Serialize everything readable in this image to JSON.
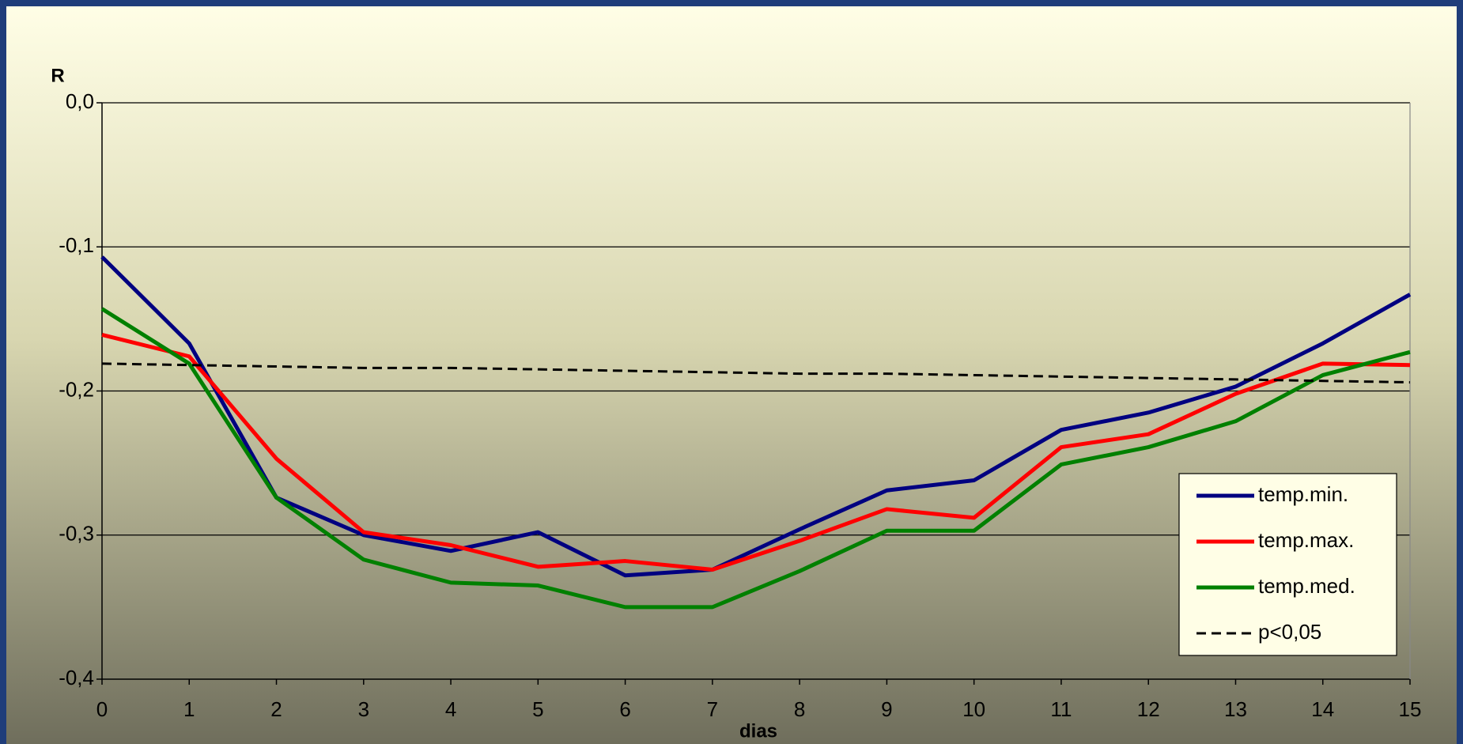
{
  "chart_data": {
    "type": "line",
    "y_label": "R",
    "x_label": "dias",
    "x": [
      0,
      1,
      2,
      3,
      4,
      5,
      6,
      7,
      8,
      9,
      10,
      11,
      12,
      13,
      14,
      15
    ],
    "xlim": [
      0,
      15
    ],
    "xticks": [
      0,
      1,
      2,
      3,
      4,
      5,
      6,
      7,
      8,
      9,
      10,
      11,
      12,
      13,
      14,
      15
    ],
    "ylim": [
      -0.4,
      0
    ],
    "yticks": [
      {
        "value": -0.4,
        "label": "-0,4"
      },
      {
        "value": -0.3,
        "label": "-0,3"
      },
      {
        "value": -0.2,
        "label": "-0,2"
      },
      {
        "value": -0.1,
        "label": "-0,1"
      },
      {
        "value": 0,
        "label": "0,0"
      }
    ],
    "grid": true,
    "legend": "lower right",
    "series": [
      {
        "name": "temp.min.",
        "color": "#000080",
        "linestyle": "solid",
        "values": [
          -0.107,
          -0.167,
          -0.274,
          -0.3,
          -0.311,
          -0.298,
          -0.328,
          -0.324,
          -0.296,
          -0.269,
          -0.262,
          -0.227,
          -0.215,
          -0.197,
          -0.167,
          -0.133
        ]
      },
      {
        "name": "temp.max.",
        "color": "#ff0000",
        "linestyle": "solid",
        "values": [
          -0.161,
          -0.176,
          -0.247,
          -0.298,
          -0.307,
          -0.322,
          -0.318,
          -0.324,
          -0.304,
          -0.282,
          -0.288,
          -0.239,
          -0.23,
          -0.202,
          -0.181,
          -0.182
        ]
      },
      {
        "name": "temp.med.",
        "color": "#008000",
        "linestyle": "solid",
        "values": [
          -0.143,
          -0.181,
          -0.274,
          -0.317,
          -0.333,
          -0.335,
          -0.35,
          -0.35,
          -0.325,
          -0.297,
          -0.297,
          -0.251,
          -0.239,
          -0.221,
          -0.189,
          -0.173
        ]
      },
      {
        "name": "p<0,05",
        "color": "#000000",
        "linestyle": "dashed",
        "values": [
          -0.181,
          -0.182,
          -0.183,
          -0.184,
          -0.184,
          -0.185,
          -0.186,
          -0.187,
          -0.188,
          -0.188,
          -0.189,
          -0.19,
          -0.191,
          -0.192,
          -0.193,
          -0.194
        ]
      }
    ]
  }
}
